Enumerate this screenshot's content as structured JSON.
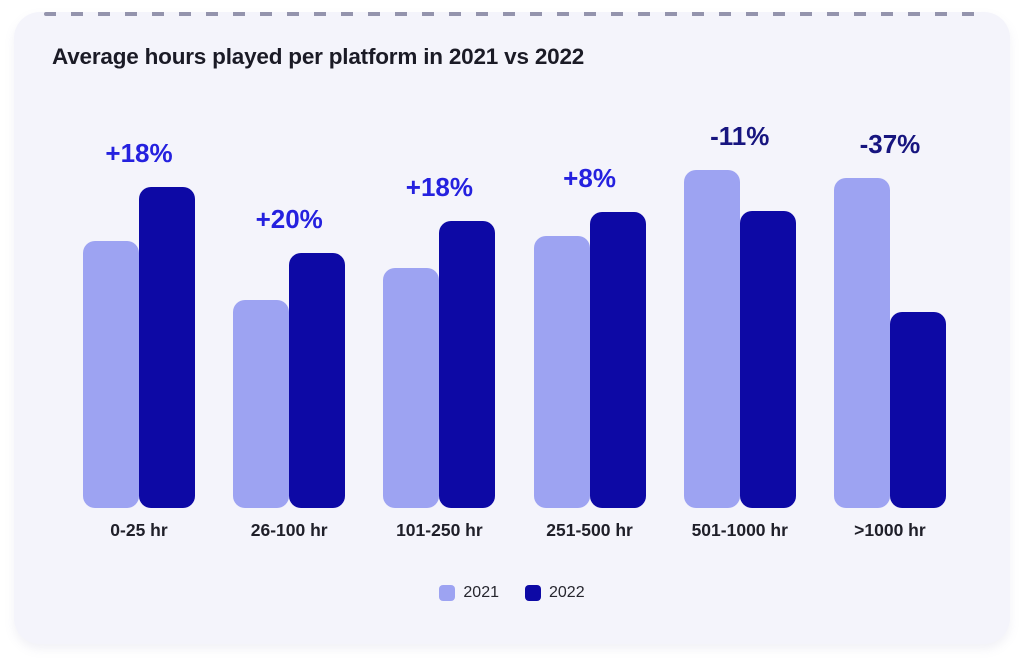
{
  "card": {
    "background": "#F4F4FB"
  },
  "title": "Average hours played per platform in 2021 vs 2022",
  "legend": {
    "items": [
      {
        "label": "2021",
        "color": "#9DA3F2"
      },
      {
        "label": "2022",
        "color": "#0D09A5"
      }
    ]
  },
  "chart_data": {
    "type": "bar",
    "title": "Average hours played per platform in 2021 vs 2022",
    "categories": [
      "0-25 hr",
      "26-100 hr",
      "101-250 hr",
      "251-500 hr",
      "501-1000 hr",
      ">1000 hr"
    ],
    "series": [
      {
        "name": "2021",
        "color": "#9DA3F2",
        "values": [
          79,
          61.5,
          71,
          80.5,
          100,
          97.5
        ]
      },
      {
        "name": "2022",
        "color": "#0D09A5",
        "values": [
          95,
          75.5,
          85,
          87.5,
          88,
          58
        ]
      }
    ],
    "change_labels": [
      "+18%",
      "+20%",
      "+18%",
      "+8%",
      "-11%",
      "-37%"
    ],
    "change_colors": {
      "positive": "#2521DF",
      "negative": "#17157F"
    },
    "value_scale": "relative bar height, max = 100 (no value axis shown)",
    "grid": false,
    "legend_position": "bottom-center"
  }
}
